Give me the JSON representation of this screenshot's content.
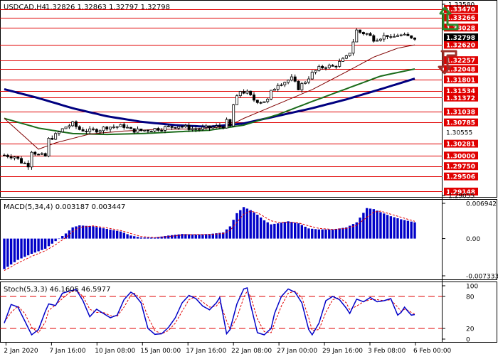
{
  "header": {
    "symbol": "USDCAD,H4",
    "ohlc": "1.32826 1.32863 1.32797 1.32798"
  },
  "colors": {
    "level_line": "#e00000",
    "tag_bg": "#e00000",
    "tag_text": "#ffffff",
    "price_tag_bg": "#000000",
    "candle": "#000000",
    "ma_fast": "#800000",
    "ma_mid": "#1a6b1a",
    "ma_slow": "#000080",
    "macd_hist": "#0000c8",
    "macd_signal": "#e00000",
    "stoch_main": "#0000c8",
    "stoch_signal": "#e00000",
    "arrow_up": "#2d8a2d",
    "arrow_down": "#a0302a",
    "panel_border": "#000000"
  },
  "icons": [
    "arrow-up-icon",
    "arrow-down-icon"
  ],
  "chart_data": [
    {
      "type": "candlestick",
      "title": "USDCAD,H4",
      "ohlc_readout": "1.32826 1.32863 1.32797 1.32798",
      "ylim": [
        1.29055,
        1.3358
      ],
      "y_axis_labels": [
        "1.33580",
        "1.29055"
      ],
      "current_price": 1.32798,
      "current_price_label": "1.32798",
      "levels": [
        1.3347,
        1.33266,
        1.33028,
        1.3262,
        1.32257,
        1.32048,
        1.31801,
        1.31534,
        1.31372,
        1.31038,
        1.30785,
        1.30555,
        1.30281,
        1.3,
        1.2975,
        1.29506,
        1.29148
      ],
      "level_labels": [
        "1.33470",
        "1.33266",
        "1.33028",
        "1.32620",
        "1.32257",
        "1.32048",
        "1.31801",
        "1.31534",
        "1.31372",
        "1.31038",
        "1.30785",
        "1.30555",
        "1.30281",
        "1.30000",
        "1.29750",
        "1.29506",
        "1.29148"
      ],
      "level_highlighted": [
        true,
        true,
        true,
        true,
        true,
        true,
        true,
        true,
        true,
        true,
        true,
        false,
        true,
        true,
        true,
        true,
        true
      ],
      "x_labels": [
        "2 Jan 2020",
        "7 Jan 16:00",
        "10 Jan 08:00",
        "15 Jan 00:00",
        "17 Jan 16:00",
        "22 Jan 08:00",
        "27 Jan 00:00",
        "29 Jan 16:00",
        "3 Feb 08:00",
        "6 Feb 00:00"
      ],
      "close_path": [
        [
          0,
          1.3001
        ],
        [
          3,
          1.2998
        ],
        [
          5,
          1.2985
        ],
        [
          7,
          1.2978
        ],
        [
          8,
          1.3012
        ],
        [
          10,
          1.3001
        ],
        [
          12,
          1.2998
        ],
        [
          13,
          1.3038
        ],
        [
          15,
          1.3048
        ],
        [
          17,
          1.3062
        ],
        [
          18,
          1.3068
        ],
        [
          20,
          1.3075
        ],
        [
          22,
          1.3062
        ],
        [
          25,
          1.3058
        ],
        [
          28,
          1.3062
        ],
        [
          30,
          1.3068
        ],
        [
          32,
          1.3068
        ],
        [
          35,
          1.307
        ],
        [
          37,
          1.306
        ],
        [
          40,
          1.3059
        ],
        [
          43,
          1.3062
        ],
        [
          46,
          1.3065
        ],
        [
          49,
          1.3068
        ],
        [
          51,
          1.3071
        ],
        [
          53,
          1.3067
        ],
        [
          56,
          1.3062
        ],
        [
          59,
          1.3065
        ],
        [
          62,
          1.3068
        ],
        [
          64,
          1.307
        ],
        [
          65,
          1.308
        ],
        [
          66,
          1.3068
        ],
        [
          67,
          1.312
        ],
        [
          69,
          1.3153
        ],
        [
          71,
          1.3148
        ],
        [
          73,
          1.3132
        ],
        [
          75,
          1.3128
        ],
        [
          77,
          1.3131
        ],
        [
          78,
          1.315
        ],
        [
          80,
          1.317
        ],
        [
          82,
          1.3175
        ],
        [
          84,
          1.3182
        ],
        [
          86,
          1.316
        ],
        [
          88,
          1.3176
        ],
        [
          90,
          1.3194
        ],
        [
          92,
          1.3206
        ],
        [
          94,
          1.3212
        ],
        [
          96,
          1.321
        ],
        [
          98,
          1.322
        ],
        [
          100,
          1.3232
        ],
        [
          101,
          1.3245
        ],
        [
          103,
          1.3296
        ],
        [
          104,
          1.3292
        ],
        [
          106,
          1.3288
        ],
        [
          107,
          1.3282
        ],
        [
          108,
          1.3276
        ],
        [
          110,
          1.328
        ],
        [
          112,
          1.3285
        ],
        [
          113,
          1.3276
        ],
        [
          115,
          1.3286
        ],
        [
          117,
          1.3282
        ],
        [
          119,
          1.3281
        ],
        [
          120,
          1.328
        ]
      ],
      "ma_fast": [
        [
          0,
          1.3088
        ],
        [
          10,
          1.3015
        ],
        [
          15,
          1.303
        ],
        [
          25,
          1.3051
        ],
        [
          35,
          1.3058
        ],
        [
          45,
          1.3062
        ],
        [
          55,
          1.3063
        ],
        [
          65,
          1.3068
        ],
        [
          70,
          1.3088
        ],
        [
          80,
          1.3122
        ],
        [
          90,
          1.3156
        ],
        [
          100,
          1.3198
        ],
        [
          108,
          1.3233
        ],
        [
          115,
          1.3254
        ],
        [
          120,
          1.3262
        ]
      ],
      "ma_mid": [
        [
          0,
          1.3088
        ],
        [
          10,
          1.3065
        ],
        [
          20,
          1.3052
        ],
        [
          30,
          1.305
        ],
        [
          40,
          1.3052
        ],
        [
          50,
          1.3056
        ],
        [
          60,
          1.306
        ],
        [
          70,
          1.3072
        ],
        [
          80,
          1.3097
        ],
        [
          90,
          1.3128
        ],
        [
          100,
          1.3158
        ],
        [
          110,
          1.3188
        ],
        [
          120,
          1.3205
        ]
      ],
      "ma_slow": [
        [
          0,
          1.3157
        ],
        [
          10,
          1.3136
        ],
        [
          20,
          1.3112
        ],
        [
          30,
          1.3093
        ],
        [
          40,
          1.308
        ],
        [
          50,
          1.3072
        ],
        [
          60,
          1.3068
        ],
        [
          70,
          1.3076
        ],
        [
          80,
          1.3094
        ],
        [
          90,
          1.3112
        ],
        [
          100,
          1.3133
        ],
        [
          110,
          1.3157
        ],
        [
          120,
          1.3182
        ]
      ]
    },
    {
      "type": "bar",
      "title": "MACD(5,34,4) 0.003187 0.003447",
      "name": "MACD(5,34,4)",
      "values_readout": [
        "0.003187",
        "0.003447"
      ],
      "ylim": [
        -0.007333,
        0.006942
      ],
      "y_axis_labels": [
        "0.006942",
        "0.00",
        "-0.007333"
      ],
      "histogram_path": [
        [
          0,
          -0.006
        ],
        [
          4,
          -0.0042
        ],
        [
          8,
          -0.003
        ],
        [
          12,
          -0.002
        ],
        [
          15,
          -0.0005
        ],
        [
          18,
          0.001
        ],
        [
          20,
          0.0022
        ],
        [
          22,
          0.0026
        ],
        [
          26,
          0.0024
        ],
        [
          30,
          0.0019
        ],
        [
          34,
          0.0014
        ],
        [
          37,
          0.0006
        ],
        [
          40,
          0.0002
        ],
        [
          44,
          0.0002
        ],
        [
          48,
          0.0006
        ],
        [
          52,
          0.0009
        ],
        [
          56,
          0.0008
        ],
        [
          60,
          0.0009
        ],
        [
          64,
          0.0012
        ],
        [
          66,
          0.0024
        ],
        [
          68,
          0.005
        ],
        [
          70,
          0.0062
        ],
        [
          72,
          0.0056
        ],
        [
          74,
          0.0047
        ],
        [
          76,
          0.0036
        ],
        [
          78,
          0.0028
        ],
        [
          80,
          0.003
        ],
        [
          83,
          0.0034
        ],
        [
          86,
          0.003
        ],
        [
          89,
          0.002
        ],
        [
          92,
          0.0018
        ],
        [
          96,
          0.0018
        ],
        [
          100,
          0.0022
        ],
        [
          103,
          0.0032
        ],
        [
          106,
          0.006
        ],
        [
          108,
          0.0058
        ],
        [
          110,
          0.0052
        ],
        [
          113,
          0.0044
        ],
        [
          116,
          0.0038
        ],
        [
          120,
          0.0032
        ]
      ],
      "signal_path": [
        [
          0,
          -0.0063
        ],
        [
          4,
          -0.0048
        ],
        [
          8,
          -0.0035
        ],
        [
          12,
          -0.0024
        ],
        [
          15,
          -0.0012
        ],
        [
          18,
          0.0002
        ],
        [
          20,
          0.0014
        ],
        [
          22,
          0.0022
        ],
        [
          26,
          0.0025
        ],
        [
          30,
          0.0021
        ],
        [
          34,
          0.0016
        ],
        [
          37,
          0.001
        ],
        [
          40,
          0.0004
        ],
        [
          44,
          0.0002
        ],
        [
          48,
          0.0004
        ],
        [
          52,
          0.0007
        ],
        [
          56,
          0.0008
        ],
        [
          60,
          0.0008
        ],
        [
          64,
          0.001
        ],
        [
          66,
          0.0016
        ],
        [
          68,
          0.0032
        ],
        [
          70,
          0.0048
        ],
        [
          72,
          0.0054
        ],
        [
          74,
          0.0051
        ],
        [
          76,
          0.0043
        ],
        [
          78,
          0.0035
        ],
        [
          80,
          0.0032
        ],
        [
          83,
          0.0032
        ],
        [
          86,
          0.0031
        ],
        [
          89,
          0.0025
        ],
        [
          92,
          0.002
        ],
        [
          96,
          0.0018
        ],
        [
          100,
          0.002
        ],
        [
          103,
          0.0026
        ],
        [
          106,
          0.0042
        ],
        [
          108,
          0.0052
        ],
        [
          110,
          0.0054
        ],
        [
          113,
          0.0048
        ],
        [
          116,
          0.0042
        ],
        [
          120,
          0.0034
        ]
      ]
    },
    {
      "type": "line",
      "title": "Stoch(5,3,3) 46.1605 46.5977",
      "name": "Stoch(5,3,3)",
      "values_readout": [
        "46.1605",
        "46.5977"
      ],
      "ylim": [
        0,
        100
      ],
      "y_axis_labels": [
        "100",
        "80",
        "20",
        "0"
      ],
      "levels": [
        80,
        20
      ],
      "main_path": [
        [
          0,
          30
        ],
        [
          2,
          65
        ],
        [
          4,
          60
        ],
        [
          6,
          34
        ],
        [
          8,
          8
        ],
        [
          10,
          18
        ],
        [
          12,
          52
        ],
        [
          13,
          66
        ],
        [
          15,
          63
        ],
        [
          17,
          86
        ],
        [
          19,
          90
        ],
        [
          21,
          93
        ],
        [
          23,
          72
        ],
        [
          25,
          42
        ],
        [
          27,
          56
        ],
        [
          29,
          48
        ],
        [
          31,
          40
        ],
        [
          33,
          45
        ],
        [
          35,
          74
        ],
        [
          37,
          88
        ],
        [
          38,
          84
        ],
        [
          40,
          68
        ],
        [
          42,
          20
        ],
        [
          44,
          9
        ],
        [
          46,
          10
        ],
        [
          48,
          22
        ],
        [
          50,
          40
        ],
        [
          52,
          68
        ],
        [
          54,
          82
        ],
        [
          56,
          76
        ],
        [
          58,
          62
        ],
        [
          60,
          55
        ],
        [
          62,
          68
        ],
        [
          63,
          78
        ],
        [
          65,
          10
        ],
        [
          66,
          18
        ],
        [
          68,
          66
        ],
        [
          70,
          94
        ],
        [
          71,
          96
        ],
        [
          72,
          65
        ],
        [
          74,
          12
        ],
        [
          76,
          8
        ],
        [
          78,
          20
        ],
        [
          79,
          48
        ],
        [
          81,
          80
        ],
        [
          83,
          94
        ],
        [
          85,
          88
        ],
        [
          87,
          68
        ],
        [
          89,
          18
        ],
        [
          90,
          8
        ],
        [
          92,
          30
        ],
        [
          94,
          72
        ],
        [
          96,
          80
        ],
        [
          98,
          74
        ],
        [
          100,
          58
        ],
        [
          101,
          48
        ],
        [
          103,
          75
        ],
        [
          105,
          70
        ],
        [
          107,
          78
        ],
        [
          109,
          70
        ],
        [
          111,
          72
        ],
        [
          113,
          76
        ],
        [
          115,
          45
        ],
        [
          116,
          50
        ],
        [
          117,
          60
        ],
        [
          118,
          52
        ],
        [
          119,
          45
        ],
        [
          120,
          46
        ]
      ],
      "signal_path": [
        [
          0,
          32
        ],
        [
          2,
          50
        ],
        [
          4,
          62
        ],
        [
          6,
          48
        ],
        [
          8,
          22
        ],
        [
          10,
          12
        ],
        [
          12,
          32
        ],
        [
          13,
          54
        ],
        [
          15,
          64
        ],
        [
          17,
          76
        ],
        [
          19,
          87
        ],
        [
          21,
          92
        ],
        [
          23,
          80
        ],
        [
          25,
          56
        ],
        [
          27,
          50
        ],
        [
          29,
          50
        ],
        [
          31,
          44
        ],
        [
          33,
          43
        ],
        [
          35,
          60
        ],
        [
          37,
          82
        ],
        [
          38,
          86
        ],
        [
          40,
          76
        ],
        [
          42,
          42
        ],
        [
          44,
          16
        ],
        [
          46,
          10
        ],
        [
          48,
          16
        ],
        [
          50,
          30
        ],
        [
          52,
          52
        ],
        [
          54,
          74
        ],
        [
          56,
          80
        ],
        [
          58,
          70
        ],
        [
          60,
          60
        ],
        [
          62,
          62
        ],
        [
          63,
          70
        ],
        [
          65,
          34
        ],
        [
          66,
          18
        ],
        [
          68,
          40
        ],
        [
          70,
          78
        ],
        [
          71,
          90
        ],
        [
          72,
          80
        ],
        [
          74,
          38
        ],
        [
          76,
          14
        ],
        [
          78,
          12
        ],
        [
          79,
          30
        ],
        [
          81,
          62
        ],
        [
          83,
          86
        ],
        [
          85,
          90
        ],
        [
          87,
          78
        ],
        [
          89,
          40
        ],
        [
          90,
          16
        ],
        [
          92,
          18
        ],
        [
          94,
          50
        ],
        [
          96,
          74
        ],
        [
          98,
          78
        ],
        [
          100,
          68
        ],
        [
          101,
          55
        ],
        [
          103,
          62
        ],
        [
          105,
          70
        ],
        [
          107,
          74
        ],
        [
          109,
          74
        ],
        [
          111,
          72
        ],
        [
          113,
          74
        ],
        [
          115,
          60
        ],
        [
          116,
          52
        ],
        [
          117,
          56
        ],
        [
          118,
          54
        ],
        [
          119,
          50
        ],
        [
          120,
          47
        ]
      ]
    }
  ]
}
